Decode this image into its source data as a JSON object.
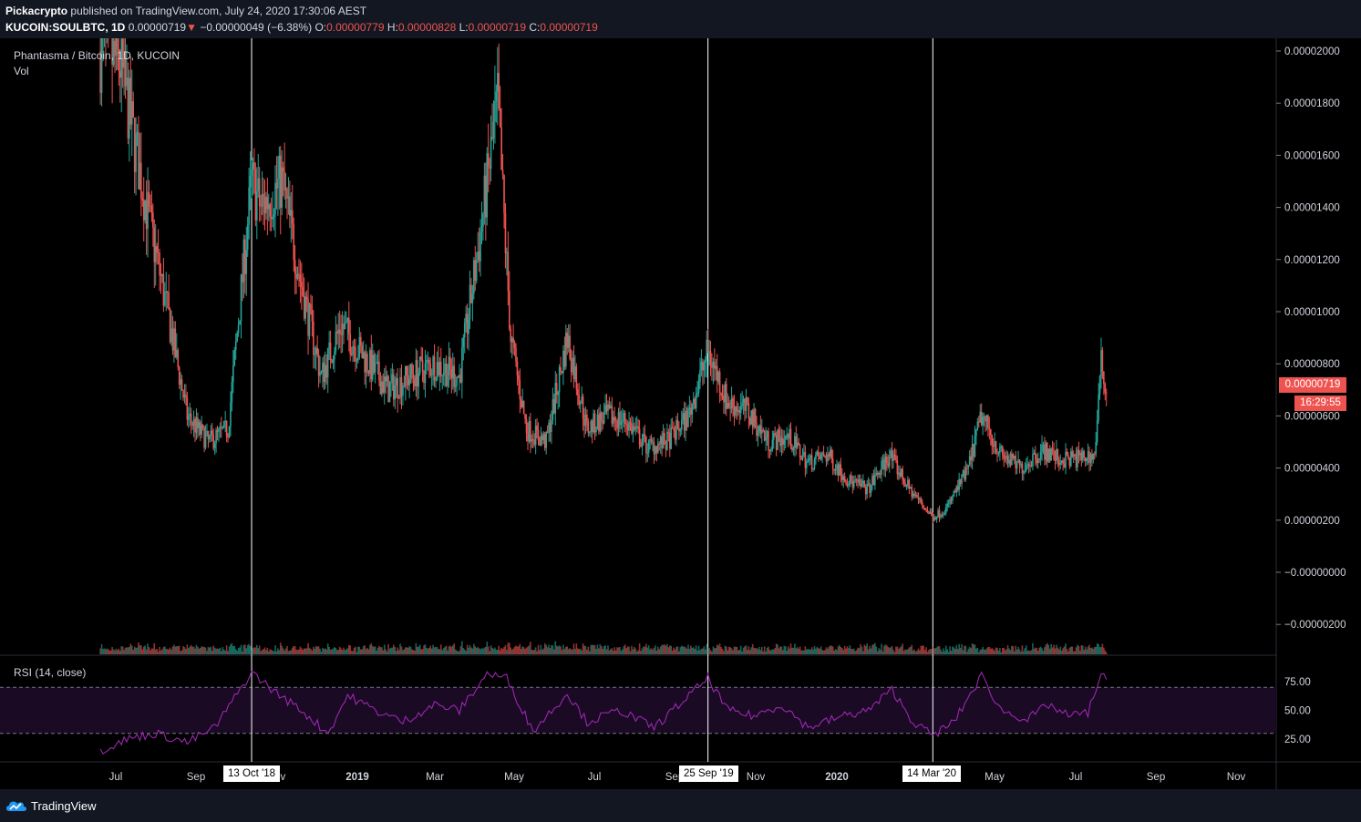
{
  "header": {
    "publisher": "Pickacrypto",
    "published_text": "published on TradingView.com, July 24, 2020 17:30:06 AEST",
    "symbol": "KUCOIN:SOULBTC, 1D",
    "last": "0.00000719",
    "change_arrow": "▼",
    "change": "−0.00000049 (−6.38%)",
    "o_label": "O:",
    "o": "0.00000779",
    "h_label": "H:",
    "h": "0.00000828",
    "l_label": "L:",
    "l": "0.00000719",
    "c_label": "C:",
    "c": "0.00000719"
  },
  "legend": {
    "title": "Phantasma / Bitcoin, 1D, KUCOIN",
    "vol": "Vol",
    "rsi": "RSI (14, close)"
  },
  "price_tag": "0.00000719",
  "time_tag": "16:29:55",
  "markers": [
    "13 Oct '18",
    "25 Sep '19",
    "14 Mar '20"
  ],
  "footer": {
    "brand": "TradingView"
  },
  "colors": {
    "up": "#26a69a",
    "down": "#ef5350",
    "rsi": "#9c27b0",
    "background": "#000000"
  },
  "chart_data": [
    {
      "type": "candlestick",
      "title": "Phantasma / Bitcoin, 1D, KUCOIN",
      "y_axis_ticks": [
        "0.00002000",
        "0.00001800",
        "0.00001600",
        "0.00001400",
        "0.00001200",
        "0.00001000",
        "0.00000800",
        "0.00000600",
        "0.00000400",
        "0.00000200",
        "−0.00000000",
        "−0.00000200"
      ],
      "x_axis_ticks": [
        "Jul",
        "Sep",
        "Nov",
        "2019",
        "Mar",
        "May",
        "Jul",
        "Sep",
        "Nov",
        "2020",
        "Mar",
        "May",
        "Jul",
        "Sep",
        "Nov"
      ],
      "ylim": [
        -2.5e-06,
        2.02e-05
      ],
      "approx_close_series": [
        {
          "date": "2018-06-20",
          "value": 2e-05
        },
        {
          "date": "2018-07-05",
          "value": 1.95e-05
        },
        {
          "date": "2018-07-25",
          "value": 1.4e-05
        },
        {
          "date": "2018-08-10",
          "value": 1e-05
        },
        {
          "date": "2018-08-25",
          "value": 6e-06
        },
        {
          "date": "2018-09-10",
          "value": 5e-06
        },
        {
          "date": "2018-09-25",
          "value": 5.5e-06
        },
        {
          "date": "2018-10-13",
          "value": 1.5e-05
        },
        {
          "date": "2018-10-20",
          "value": 1.4e-05
        },
        {
          "date": "2018-11-05",
          "value": 1.5e-05
        },
        {
          "date": "2018-11-20",
          "value": 1.1e-05
        },
        {
          "date": "2018-12-05",
          "value": 7.5e-06
        },
        {
          "date": "2018-12-20",
          "value": 9.5e-06
        },
        {
          "date": "2019-01-10",
          "value": 8e-06
        },
        {
          "date": "2019-01-25",
          "value": 7e-06
        },
        {
          "date": "2019-02-10",
          "value": 7.5e-06
        },
        {
          "date": "2019-03-01",
          "value": 8e-06
        },
        {
          "date": "2019-03-20",
          "value": 7.5e-06
        },
        {
          "date": "2019-04-05",
          "value": 1.3e-05
        },
        {
          "date": "2019-04-18",
          "value": 1.8e-05
        },
        {
          "date": "2019-04-28",
          "value": 9e-06
        },
        {
          "date": "2019-05-10",
          "value": 5.5e-06
        },
        {
          "date": "2019-05-25",
          "value": 5e-06
        },
        {
          "date": "2019-06-10",
          "value": 9e-06
        },
        {
          "date": "2019-06-25",
          "value": 5.5e-06
        },
        {
          "date": "2019-07-10",
          "value": 6e-06
        },
        {
          "date": "2019-07-25",
          "value": 5.8e-06
        },
        {
          "date": "2019-08-10",
          "value": 4.8e-06
        },
        {
          "date": "2019-08-25",
          "value": 5e-06
        },
        {
          "date": "2019-09-10",
          "value": 6e-06
        },
        {
          "date": "2019-09-25",
          "value": 8.5e-06
        },
        {
          "date": "2019-10-10",
          "value": 6.5e-06
        },
        {
          "date": "2019-10-25",
          "value": 6.2e-06
        },
        {
          "date": "2019-11-10",
          "value": 5e-06
        },
        {
          "date": "2019-11-25",
          "value": 5.2e-06
        },
        {
          "date": "2019-12-10",
          "value": 4.2e-06
        },
        {
          "date": "2019-12-25",
          "value": 4.5e-06
        },
        {
          "date": "2020-01-10",
          "value": 3.5e-06
        },
        {
          "date": "2020-01-25",
          "value": 3.2e-06
        },
        {
          "date": "2020-02-10",
          "value": 4.5e-06
        },
        {
          "date": "2020-02-25",
          "value": 3.2e-06
        },
        {
          "date": "2020-03-14",
          "value": 2.1e-06
        },
        {
          "date": "2020-03-25",
          "value": 2.5e-06
        },
        {
          "date": "2020-04-10",
          "value": 4e-06
        },
        {
          "date": "2020-04-20",
          "value": 6e-06
        },
        {
          "date": "2020-05-05",
          "value": 4.5e-06
        },
        {
          "date": "2020-05-20",
          "value": 4e-06
        },
        {
          "date": "2020-06-05",
          "value": 4.7e-06
        },
        {
          "date": "2020-06-20",
          "value": 4.3e-06
        },
        {
          "date": "2020-07-05",
          "value": 4.4e-06
        },
        {
          "date": "2020-07-15",
          "value": 4.5e-06
        },
        {
          "date": "2020-07-20",
          "value": 7.9e-06
        },
        {
          "date": "2020-07-24",
          "value": 7.19e-06
        }
      ]
    },
    {
      "type": "line",
      "title": "RSI (14, close)",
      "y_axis_ticks": [
        "75.00",
        "50.00",
        "25.00"
      ],
      "band": [
        30,
        70
      ],
      "ylim": [
        10,
        90
      ],
      "approx_series": [
        {
          "date": "2018-06-20",
          "value": 15
        },
        {
          "date": "2018-07-10",
          "value": 25
        },
        {
          "date": "2018-08-01",
          "value": 30
        },
        {
          "date": "2018-08-25",
          "value": 22
        },
        {
          "date": "2018-09-15",
          "value": 35
        },
        {
          "date": "2018-10-13",
          "value": 83
        },
        {
          "date": "2018-11-01",
          "value": 65
        },
        {
          "date": "2018-11-20",
          "value": 50
        },
        {
          "date": "2018-12-10",
          "value": 30
        },
        {
          "date": "2018-12-25",
          "value": 63
        },
        {
          "date": "2019-01-15",
          "value": 50
        },
        {
          "date": "2019-02-05",
          "value": 40
        },
        {
          "date": "2019-03-01",
          "value": 55
        },
        {
          "date": "2019-03-20",
          "value": 50
        },
        {
          "date": "2019-04-10",
          "value": 82
        },
        {
          "date": "2019-04-25",
          "value": 78
        },
        {
          "date": "2019-05-15",
          "value": 32
        },
        {
          "date": "2019-06-10",
          "value": 65
        },
        {
          "date": "2019-06-25",
          "value": 40
        },
        {
          "date": "2019-07-20",
          "value": 50
        },
        {
          "date": "2019-08-15",
          "value": 35
        },
        {
          "date": "2019-09-25",
          "value": 78
        },
        {
          "date": "2019-10-10",
          "value": 50
        },
        {
          "date": "2019-10-30",
          "value": 45
        },
        {
          "date": "2019-11-20",
          "value": 55
        },
        {
          "date": "2019-12-10",
          "value": 35
        },
        {
          "date": "2020-01-05",
          "value": 45
        },
        {
          "date": "2020-01-25",
          "value": 50
        },
        {
          "date": "2020-02-12",
          "value": 68
        },
        {
          "date": "2020-02-28",
          "value": 40
        },
        {
          "date": "2020-03-14",
          "value": 28
        },
        {
          "date": "2020-03-30",
          "value": 40
        },
        {
          "date": "2020-04-20",
          "value": 80
        },
        {
          "date": "2020-05-05",
          "value": 50
        },
        {
          "date": "2020-05-25",
          "value": 42
        },
        {
          "date": "2020-06-10",
          "value": 55
        },
        {
          "date": "2020-06-25",
          "value": 45
        },
        {
          "date": "2020-07-10",
          "value": 48
        },
        {
          "date": "2020-07-20",
          "value": 82
        },
        {
          "date": "2020-07-24",
          "value": 77
        }
      ]
    }
  ]
}
